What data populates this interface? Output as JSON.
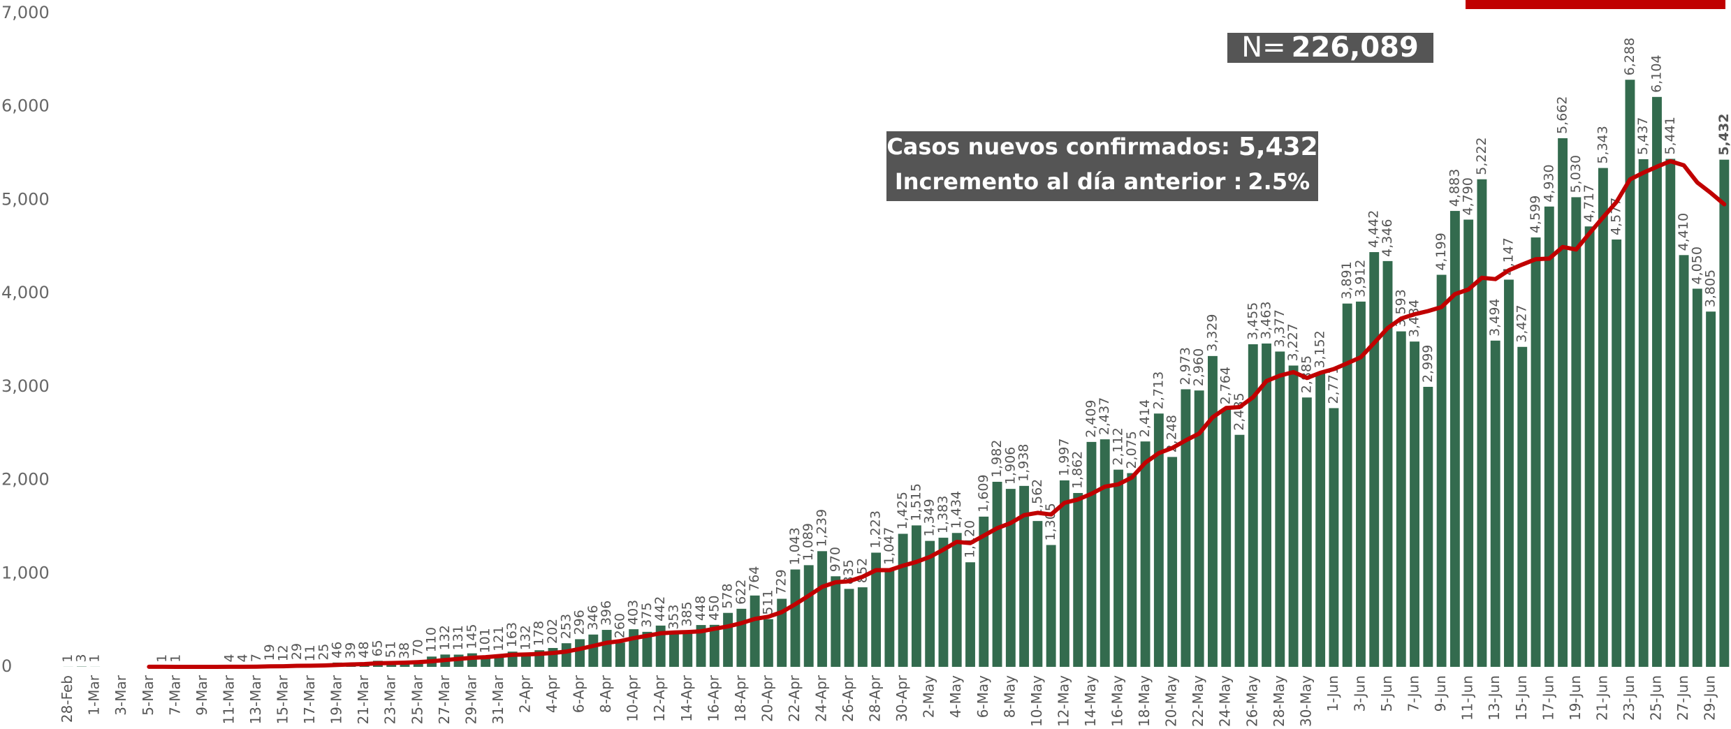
{
  "chart_data": {
    "type": "bar",
    "categories": [
      "28-Feb",
      null,
      "1-Mar",
      null,
      "3-Mar",
      null,
      "5-Mar",
      null,
      "7-Mar",
      null,
      "9-Mar",
      null,
      "11-Mar",
      null,
      "13-Mar",
      null,
      "15-Mar",
      null,
      "17-Mar",
      null,
      "19-Mar",
      null,
      "21-Mar",
      null,
      "23-Mar",
      null,
      "25-Mar",
      null,
      "27-Mar",
      null,
      "29-Mar",
      null,
      "31-Mar",
      null,
      "2-Apr",
      null,
      "4-Apr",
      null,
      "6-Apr",
      null,
      "8-Apr",
      null,
      "10-Apr",
      null,
      "12-Apr",
      null,
      "14-Apr",
      null,
      "16-Apr",
      null,
      "18-Apr",
      null,
      "20-Apr",
      null,
      "22-Apr",
      null,
      "24-Apr",
      null,
      "26-Apr",
      null,
      "28-Apr",
      null,
      "30-Apr",
      null,
      "2-May",
      null,
      "4-May",
      null,
      "6-May",
      null,
      "8-May",
      null,
      "10-May",
      null,
      "12-May",
      null,
      "14-May",
      null,
      "16-May",
      null,
      "18-May",
      null,
      "20-May",
      null,
      "22-May",
      null,
      "24-May",
      null,
      "26-May",
      null,
      "28-May",
      null,
      "30-May",
      null,
      "1-Jun",
      null,
      "3-Jun",
      null,
      "5-Jun",
      null,
      "7-Jun",
      null,
      "9-Jun",
      null,
      "11-Jun",
      null,
      "13-Jun",
      null,
      "15-Jun",
      null,
      "17-Jun",
      null,
      "19-Jun",
      null,
      "21-Jun",
      null,
      "23-Jun",
      null,
      "25-Jun",
      null,
      "27-Jun",
      null,
      "29-Jun",
      null
    ],
    "series": [
      {
        "color": "#336b4e",
        "values": [
          1,
          3,
          1,
          0,
          0,
          0,
          0,
          1,
          1,
          0,
          0,
          0,
          4,
          4,
          7,
          19,
          12,
          29,
          11,
          25,
          46,
          39,
          48,
          65,
          51,
          38,
          70,
          110,
          132,
          131,
          145,
          101,
          121,
          163,
          132,
          178,
          202,
          253,
          296,
          346,
          396,
          260,
          403,
          375,
          442,
          353,
          385,
          448,
          450,
          578,
          622,
          764,
          511,
          729,
          1043,
          1089,
          1239,
          970,
          835,
          852,
          1223,
          1047,
          1425,
          1515,
          1349,
          1383,
          1434,
          1120,
          1609,
          1982,
          1906,
          1938,
          1562,
          1305,
          1997,
          1862,
          2409,
          2437,
          2112,
          2075,
          2414,
          2713,
          2248,
          2973,
          2960,
          3329,
          2764,
          2485,
          3455,
          3463,
          3377,
          3227,
          2885,
          3152,
          2771,
          3891,
          3912,
          4442,
          4346,
          3593,
          3484,
          2999,
          4199,
          4883,
          4790,
          5222,
          3494,
          4147,
          3427,
          4599,
          4930,
          5662,
          5030,
          4717,
          5343,
          4577,
          6288,
          5437,
          6104,
          5441,
          4410,
          4050,
          3805,
          5432
        ],
        "value_labels": [
          "1",
          "3",
          "1",
          null,
          null,
          null,
          null,
          "1",
          "1",
          null,
          null,
          null,
          "4",
          "4",
          "7",
          "19",
          "12",
          "29",
          "11",
          "25",
          "46",
          "39",
          "48",
          "65",
          "51",
          "38",
          "70",
          "110",
          "132",
          "131",
          "145",
          "101",
          "121",
          "163",
          "132",
          "178",
          "202",
          "253",
          "296",
          "346",
          "396",
          "260",
          "403",
          "375",
          "442",
          "353",
          "385",
          "448",
          "450",
          "578",
          "622",
          "764",
          "511",
          "729",
          "1,043",
          "1,089",
          "1,239",
          "970",
          "835",
          "852",
          "1,223",
          "1,047",
          "1,425",
          "1,515",
          "1,349",
          "1,383",
          "1,434",
          "1,120",
          "1,609",
          "1,982",
          "1,906",
          "1,938",
          "1,562",
          "1,305",
          "1,997",
          "1,862",
          "2,409",
          "2,437",
          "2,112",
          "2,075",
          "2,414",
          "2,713",
          "2,248",
          "2,973",
          "2,960",
          "3,329",
          "2,764",
          "2,485",
          "3,455",
          "3,463",
          "3,377",
          "3,227",
          "2,885",
          "3,152",
          "2,771",
          "3,891",
          "3,912",
          "4,442",
          "4,346",
          "3,593",
          "3,484",
          "2,999",
          "4,199",
          "4,883",
          "4,790",
          "5,222",
          "3,494",
          "4,147",
          "3,427",
          "4,599",
          "4,930",
          "5,662",
          "5,030",
          "4,717",
          "5,343",
          "4,577",
          "6,288",
          "5,437",
          "6,104",
          "5,441",
          "4,410",
          "4,050",
          "3,805",
          "5,432"
        ]
      },
      {
        "type": "line",
        "color": "#c00000",
        "values": [
          null,
          null,
          null,
          null,
          null,
          null,
          1,
          1,
          0,
          0,
          0,
          0,
          1,
          1,
          2,
          5,
          7,
          11,
          12,
          15,
          21,
          26,
          30,
          38,
          41,
          45,
          51,
          60,
          73,
          85,
          97,
          104,
          116,
          129,
          132,
          139,
          149,
          164,
          192,
          224,
          258,
          276,
          308,
          333,
          360,
          368,
          373,
          381,
          408,
          433,
          468,
          514,
          537,
          586,
          671,
          762,
          857,
          906,
          917,
          965,
          1036,
          1036,
          1084,
          1124,
          1178,
          1256,
          1339,
          1325,
          1405,
          1485,
          1540,
          1625,
          1650,
          1632,
          1757,
          1793,
          1854,
          1930,
          1955,
          2028,
          2187,
          2289,
          2344,
          2425,
          2499,
          2673,
          2772,
          2782,
          2888,
          3061,
          3119,
          3157,
          3094,
          3149,
          3190,
          3252,
          3316,
          3469,
          3628,
          3730,
          3777,
          3810,
          3854,
          3992,
          4042,
          4167,
          4153,
          4248,
          4309,
          4366,
          4373,
          4497,
          4470,
          4645,
          4815,
          4980,
          5221,
          5293,
          5357,
          5415,
          5371,
          5187,
          5076,
          4954
        ]
      }
    ],
    "ylim": [
      0,
      7000
    ],
    "yticks": [
      0,
      {
        "value": 1000,
        "label": "1,000"
      },
      {
        "value": 2000,
        "label": "2,000"
      },
      {
        "value": 3000,
        "label": "3,000"
      },
      {
        "value": 4000,
        "label": "4,000"
      },
      {
        "value": 5000,
        "label": "5,000"
      },
      {
        "value": 6000,
        "label": "6,000"
      },
      {
        "value": 7000,
        "label": "7,000"
      }
    ],
    "annotations": {
      "n_prefix": "N=",
      "n_value": "226,089",
      "new_cases_label": "Casos nuevos confirmados:",
      "new_cases_value": "5,432",
      "increase_label": "Incremento al día anterior :",
      "increase_value": "2.5%"
    }
  }
}
